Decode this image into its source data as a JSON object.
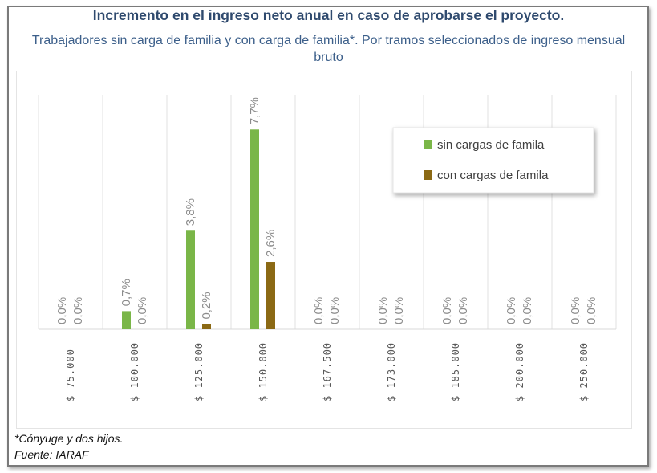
{
  "chart_data": {
    "type": "bar",
    "title": "Incremento en el ingreso neto anual en caso de aprobarse el proyecto.",
    "subtitle": "Trabajadores sin carga de familia y con carga de familia*. Por tramos seleccionados de ingreso mensual bruto",
    "categories": [
      "$ 75.000",
      "$ 100.000",
      "$ 125.000",
      "$ 150.000",
      "$ 167.500",
      "$ 173.000",
      "$ 185.000",
      "$ 200.000",
      "$ 250.000"
    ],
    "series": [
      {
        "name": "sin cargas de famila",
        "color": "#7ab648",
        "values": [
          0.0,
          0.7,
          3.8,
          7.7,
          0.0,
          0.0,
          0.0,
          0.0,
          0.0
        ],
        "labels": [
          "0,0%",
          "0,7%",
          "3,8%",
          "7,7%",
          "0,0%",
          "0,0%",
          "0,0%",
          "0,0%",
          "0,0%"
        ]
      },
      {
        "name": "con cargas de famila",
        "color": "#8b6914",
        "values": [
          0.0,
          0.0,
          0.2,
          2.6,
          0.0,
          0.0,
          0.0,
          0.0,
          0.0
        ],
        "labels": [
          "0,0%",
          "0,0%",
          "0,2%",
          "2,6%",
          "0,0%",
          "0,0%",
          "0,0%",
          "0,0%",
          "0,0%"
        ]
      }
    ],
    "ylim": [
      0,
      9
    ],
    "grid": "vertical",
    "legend": "top-right"
  },
  "footnotes": {
    "note": "*Cónyuge y dos hijos.",
    "source": "Fuente: IARAF"
  }
}
